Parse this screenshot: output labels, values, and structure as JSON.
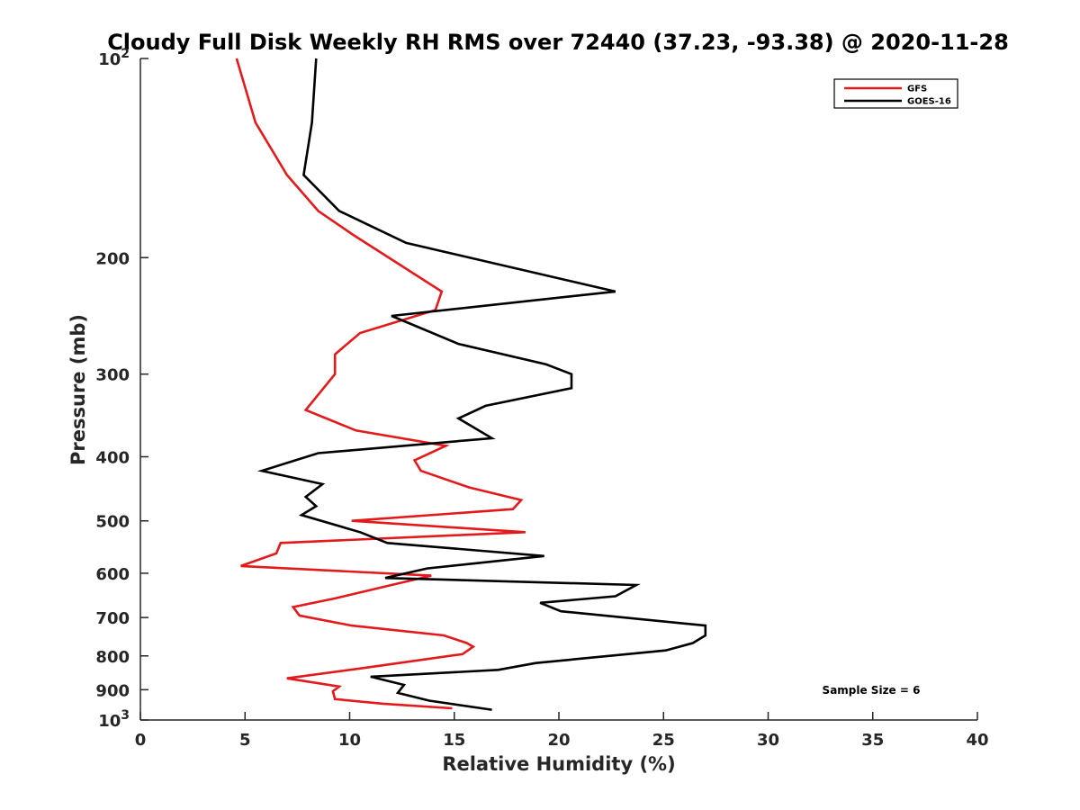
{
  "chart_data": {
    "type": "line",
    "title": "Cloudy Full Disk Weekly RH RMS over 72440 (37.23, -93.38) @ 2020-11-28",
    "xlabel": "Relative Humidity (%)",
    "ylabel": "Pressure (mb)",
    "xlim": [
      0,
      40
    ],
    "ylim": [
      100,
      1000
    ],
    "y_scale": "log",
    "y_reversed": true,
    "x_ticks": [
      "0",
      "5",
      "10",
      "15",
      "20",
      "25",
      "30",
      "35",
      "40"
    ],
    "y_ticks": [
      {
        "value": 100,
        "base": "10",
        "exp": "2"
      },
      {
        "value": 200,
        "label": "200"
      },
      {
        "value": 300,
        "label": "300"
      },
      {
        "value": 400,
        "label": "400"
      },
      {
        "value": 500,
        "label": "500"
      },
      {
        "value": 600,
        "label": "600"
      },
      {
        "value": 700,
        "label": "700"
      },
      {
        "value": 800,
        "label": "800"
      },
      {
        "value": 900,
        "label": "900"
      },
      {
        "value": 1000,
        "base": "10",
        "exp": "3"
      }
    ],
    "grid": false,
    "legend_position": "top-right",
    "annotation": "Sample Size = 6",
    "series": [
      {
        "name": "GFS",
        "color": "#e31a1c",
        "points": [
          [
            4.6,
            100
          ],
          [
            5.5,
            125
          ],
          [
            7.0,
            150
          ],
          [
            8.5,
            170
          ],
          [
            10.2,
            185
          ],
          [
            14.4,
            225
          ],
          [
            14.1,
            240
          ],
          [
            10.5,
            260
          ],
          [
            9.3,
            280
          ],
          [
            9.3,
            300
          ],
          [
            7.9,
            340
          ],
          [
            10.3,
            365
          ],
          [
            14.6,
            385
          ],
          [
            13.1,
            405
          ],
          [
            13.4,
            420
          ],
          [
            15.7,
            445
          ],
          [
            18.2,
            465
          ],
          [
            17.8,
            480
          ],
          [
            10.1,
            500
          ],
          [
            18.4,
            520
          ],
          [
            6.7,
            540
          ],
          [
            6.5,
            560
          ],
          [
            4.8,
            585
          ],
          [
            13.9,
            605
          ],
          [
            12.0,
            625
          ],
          [
            9.3,
            655
          ],
          [
            7.3,
            675
          ],
          [
            7.6,
            695
          ],
          [
            10.1,
            720
          ],
          [
            14.5,
            745
          ],
          [
            15.6,
            765
          ],
          [
            15.9,
            775
          ],
          [
            15.4,
            795
          ],
          [
            10.6,
            835
          ],
          [
            7.0,
            865
          ],
          [
            9.5,
            890
          ],
          [
            9.2,
            905
          ],
          [
            9.3,
            930
          ],
          [
            11.6,
            945
          ],
          [
            14.9,
            960
          ]
        ]
      },
      {
        "name": "GOES-16",
        "color": "#000000",
        "points": [
          [
            8.4,
            100
          ],
          [
            8.2,
            125
          ],
          [
            7.8,
            150
          ],
          [
            9.5,
            170
          ],
          [
            12.7,
            190
          ],
          [
            22.7,
            225
          ],
          [
            12.0,
            245
          ],
          [
            15.2,
            270
          ],
          [
            19.4,
            290
          ],
          [
            20.6,
            300
          ],
          [
            20.6,
            315
          ],
          [
            16.5,
            335
          ],
          [
            15.2,
            350
          ],
          [
            16.8,
            375
          ],
          [
            8.5,
            395
          ],
          [
            5.8,
            420
          ],
          [
            8.7,
            440
          ],
          [
            7.9,
            460
          ],
          [
            8.4,
            475
          ],
          [
            7.7,
            490
          ],
          [
            10.5,
            520
          ],
          [
            11.8,
            540
          ],
          [
            19.3,
            565
          ],
          [
            13.7,
            590
          ],
          [
            11.7,
            610
          ],
          [
            23.7,
            625
          ],
          [
            22.7,
            650
          ],
          [
            19.1,
            665
          ],
          [
            20.1,
            685
          ],
          [
            27.0,
            720
          ],
          [
            27.0,
            745
          ],
          [
            26.4,
            765
          ],
          [
            25.1,
            785
          ],
          [
            18.9,
            820
          ],
          [
            17.1,
            840
          ],
          [
            11.0,
            860
          ],
          [
            12.6,
            885
          ],
          [
            12.3,
            910
          ],
          [
            13.8,
            935
          ],
          [
            16.8,
            965
          ]
        ]
      }
    ]
  }
}
